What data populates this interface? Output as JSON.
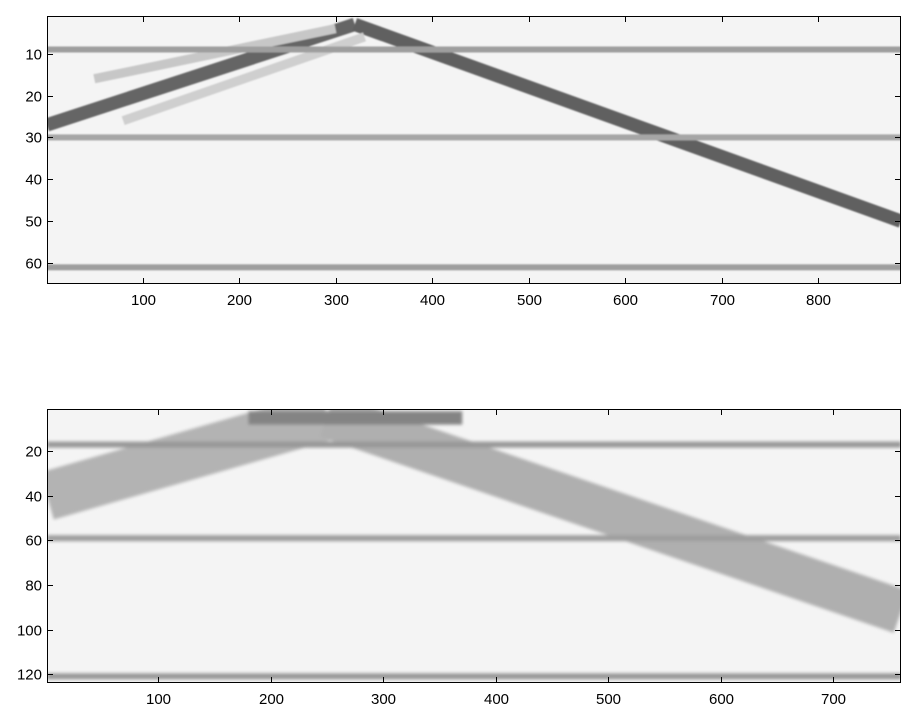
{
  "chart_data": [
    {
      "type": "heatmap",
      "colormap": "gray",
      "background_color": "#f4f4f4",
      "xlim": [
        1,
        886
      ],
      "ylim": [
        1,
        65
      ],
      "y_reversed": true,
      "xticks": [
        100,
        200,
        300,
        400,
        500,
        600,
        700,
        800
      ],
      "yticks": [
        10,
        20,
        30,
        40,
        50,
        60
      ],
      "horizontal_bands": [
        {
          "y": 9,
          "intensity": 0.42
        },
        {
          "y": 30,
          "intensity": 0.38
        },
        {
          "y": 61,
          "intensity": 0.42
        }
      ],
      "diagonal_bands": [
        {
          "points": [
            [
              1,
              27
            ],
            [
              320,
              3
            ]
          ],
          "width": 3.2,
          "intensity": 0.7
        },
        {
          "points": [
            [
              320,
              3
            ],
            [
              886,
              50
            ]
          ],
          "width": 3.2,
          "intensity": 0.72
        },
        {
          "points": [
            [
              50,
              16
            ],
            [
              300,
              4
            ]
          ],
          "width": 2.2,
          "intensity": 0.22
        },
        {
          "points": [
            [
              80,
              26
            ],
            [
              330,
              6
            ]
          ],
          "width": 2.2,
          "intensity": 0.18
        }
      ]
    },
    {
      "type": "heatmap",
      "colormap": "gray",
      "background_color": "#f4f4f4",
      "xlim": [
        1,
        760
      ],
      "ylim": [
        1,
        124
      ],
      "y_reversed": true,
      "xticks": [
        100,
        200,
        300,
        400,
        500,
        600,
        700
      ],
      "yticks": [
        20,
        40,
        60,
        80,
        100,
        120
      ],
      "horizontal_bands": [
        {
          "y": 17,
          "intensity": 0.45
        },
        {
          "y": 59,
          "intensity": 0.42
        },
        {
          "y": 121,
          "intensity": 0.45
        }
      ],
      "diagonal_bands": [
        {
          "points": [
            [
              1,
              40
            ],
            [
              250,
              4
            ]
          ],
          "width": 22,
          "intensity": 0.32
        },
        {
          "points": [
            [
              250,
              4
            ],
            [
              760,
              92
            ]
          ],
          "width": 20,
          "intensity": 0.34
        },
        {
          "points": [
            [
              180,
              5
            ],
            [
              370,
              5
            ]
          ],
          "width": 6,
          "intensity": 0.55
        }
      ]
    }
  ]
}
